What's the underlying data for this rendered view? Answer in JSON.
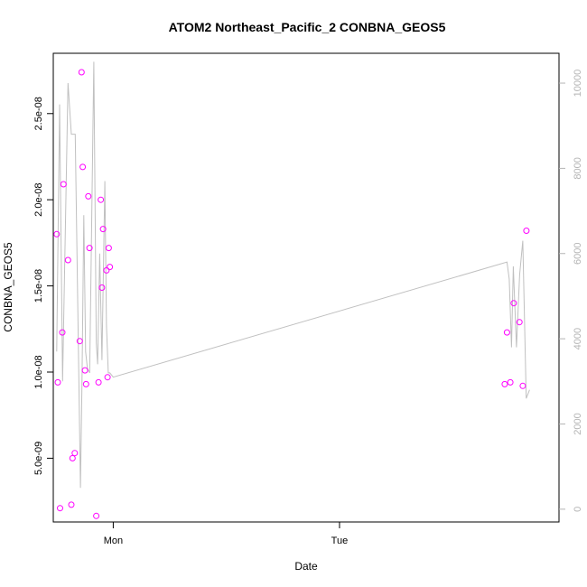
{
  "chart_data": {
    "type": "scatter",
    "title": "ATOM2 Northeast_Pacific_2 CONBNA_GEOS5",
    "xlabel": "Date",
    "ylabel": "CONBNA_GEOS5",
    "x_axis": {
      "unit": "day",
      "range": [
        -0.265,
        1.97
      ],
      "ticks": [
        {
          "value": 0,
          "label": "Mon"
        },
        {
          "value": 1,
          "label": "Tue"
        }
      ]
    },
    "y_axis": {
      "range": [
        1.3e-09,
        2.85e-08
      ],
      "ticks": [
        {
          "value": 5e-09,
          "label": "5.0e-09"
        },
        {
          "value": 1e-08,
          "label": "1.0e-08"
        },
        {
          "value": 1.5e-08,
          "label": "1.5e-08"
        },
        {
          "value": 2e-08,
          "label": "2.0e-08"
        },
        {
          "value": 2.5e-08,
          "label": "2.5e-08"
        }
      ]
    },
    "y2_axis": {
      "range": [
        -300,
        10700
      ],
      "ticks": [
        {
          "value": 0,
          "label": "0"
        },
        {
          "value": 2000,
          "label": "2000"
        },
        {
          "value": 4000,
          "label": "4000"
        },
        {
          "value": 6000,
          "label": "6000"
        },
        {
          "value": 8000,
          "label": "8000"
        },
        {
          "value": 10000,
          "label": "10000"
        }
      ]
    },
    "colors": {
      "points": "#ff00ff",
      "line": "#c0c0c0",
      "right_axis": "#b4b4b4",
      "axes": "#000000"
    },
    "series": [
      {
        "type": "scatter",
        "x": [
          -0.25,
          -0.245,
          -0.235,
          -0.225,
          -0.22,
          -0.2,
          -0.185,
          -0.18,
          -0.17,
          -0.148,
          -0.14,
          -0.135,
          -0.125,
          -0.12,
          -0.11,
          -0.105,
          -0.075,
          -0.065,
          -0.055,
          -0.05,
          -0.045,
          -0.03,
          -0.025,
          -0.02,
          -0.015,
          1.73,
          1.74,
          1.755,
          1.77,
          1.795,
          1.81,
          1.826
        ],
        "y": [
          1.8e-08,
          9.4e-09,
          2.1e-09,
          1.23e-08,
          2.09e-08,
          1.65e-08,
          2.3e-09,
          5e-09,
          5.3e-09,
          1.18e-08,
          2.74e-08,
          2.19e-08,
          1.01e-08,
          9.3e-09,
          2.02e-08,
          1.72e-08,
          1.65e-09,
          9.4e-09,
          2e-08,
          1.49e-08,
          1.83e-08,
          1.59e-08,
          9.7e-09,
          1.72e-08,
          1.61e-08,
          9.3e-09,
          1.23e-08,
          9.4e-09,
          1.4e-08,
          1.29e-08,
          9.2e-09,
          1.82e-08
        ]
      },
      {
        "type": "line",
        "axis": "right",
        "x": [
          -0.25,
          -0.237,
          -0.224,
          -0.2,
          -0.185,
          -0.168,
          -0.145,
          -0.138,
          -0.13,
          -0.122,
          -0.114,
          -0.104,
          -0.086,
          -0.075,
          -0.069,
          -0.06,
          -0.05,
          -0.037,
          -0.03,
          -0.022,
          -0.015,
          0,
          1.74,
          1.75,
          1.76,
          1.768,
          1.782,
          1.796,
          1.81,
          1.825,
          1.84
        ],
        "y": [
          3700,
          9500,
          3000,
          10000,
          8800,
          8800,
          500,
          3000,
          6900,
          3700,
          3300,
          3200,
          10500,
          3900,
          3400,
          6000,
          3500,
          7700,
          4300,
          3200,
          3200,
          3100,
          5800,
          5400,
          3800,
          5700,
          3800,
          5500,
          6300,
          2600,
          2800
        ]
      }
    ]
  }
}
